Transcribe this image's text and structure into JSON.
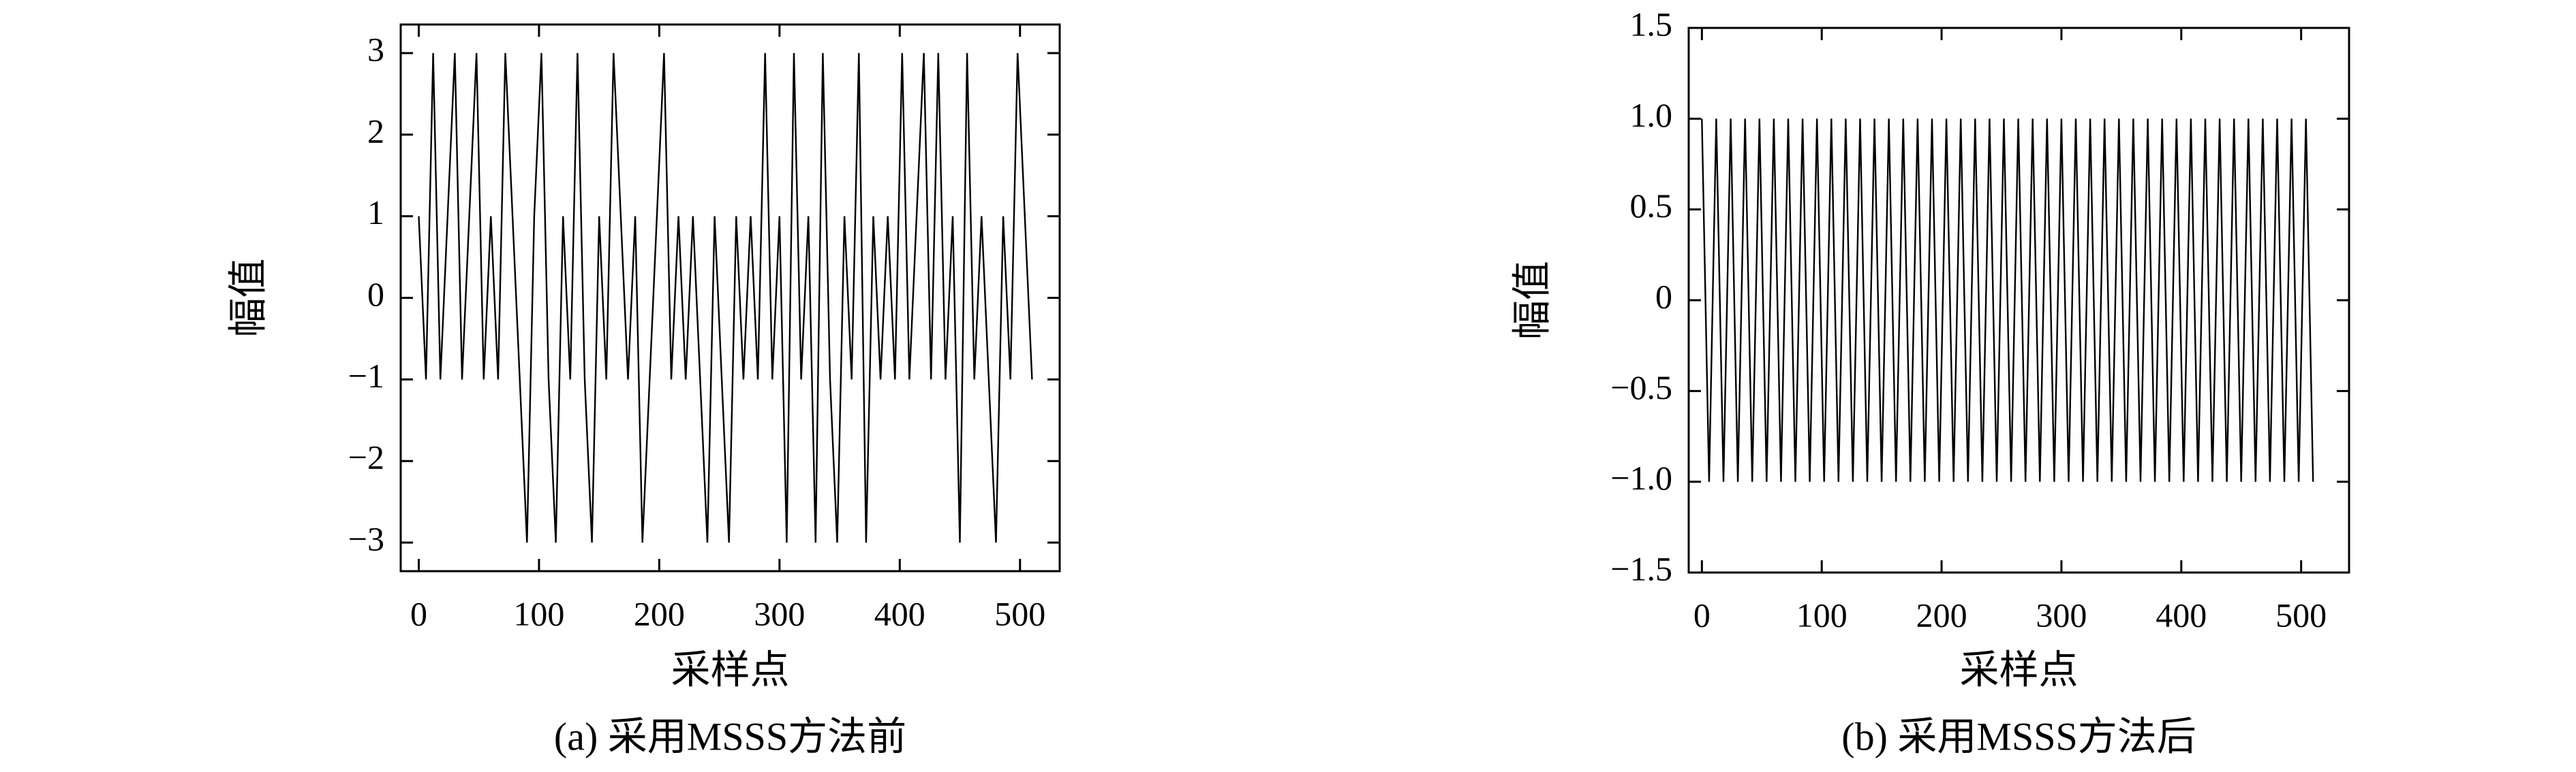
{
  "chart_data": [
    {
      "type": "line",
      "xlabel": "采样点",
      "ylabel": "幅值",
      "caption": "(a) 采用MSSS方法前",
      "color": "#000000",
      "xlim": [
        -15,
        533
      ],
      "ylim": [
        -3.35,
        3.35
      ],
      "xticks": [
        0,
        100,
        200,
        300,
        400,
        500
      ],
      "yticks": [
        {
          "value": -3,
          "label": "−3"
        },
        {
          "value": -2,
          "label": "−2"
        },
        {
          "value": -1,
          "label": "−1"
        },
        0,
        1,
        2,
        3
      ],
      "x": [
        0,
        6,
        12,
        18,
        24,
        30,
        36,
        42,
        48,
        54,
        60,
        66,
        72,
        78,
        84,
        90,
        96,
        102,
        108,
        114,
        120,
        126,
        132,
        138,
        144,
        150,
        156,
        162,
        168,
        174,
        180,
        186,
        192,
        198,
        204,
        210,
        216,
        222,
        228,
        234,
        240,
        246,
        252,
        258,
        264,
        270,
        276,
        282,
        288,
        294,
        300,
        306,
        312,
        318,
        324,
        330,
        336,
        342,
        348,
        354,
        360,
        366,
        372,
        378,
        384,
        390,
        396,
        402,
        408,
        414,
        420,
        426,
        432,
        438,
        444,
        450,
        456,
        462,
        468,
        474,
        480,
        486,
        492,
        498,
        504,
        510
      ],
      "values": [
        1,
        -1,
        3,
        -1,
        1,
        3,
        -1,
        1,
        3,
        -1,
        1,
        -1,
        3,
        1,
        -1,
        -3,
        1,
        3,
        -1,
        -3,
        1,
        -1,
        3,
        -1,
        -3,
        1,
        -1,
        3,
        1,
        -1,
        1,
        -3,
        -1,
        1,
        3,
        -1,
        1,
        -1,
        1,
        -1,
        -3,
        1,
        -1,
        -3,
        1,
        -1,
        1,
        -1,
        3,
        -1,
        1,
        -3,
        3,
        -1,
        1,
        -3,
        3,
        -1,
        -3,
        1,
        -1,
        3,
        -3,
        1,
        -1,
        1,
        -1,
        3,
        -1,
        1,
        3,
        -1,
        3,
        -1,
        1,
        -3,
        3,
        -1,
        1,
        -1,
        -3,
        1,
        -1,
        3,
        1,
        -1
      ]
    },
    {
      "type": "line",
      "xlabel": "采样点",
      "ylabel": "幅值",
      "caption": "(b) 采用MSSS方法后",
      "color": "#000000",
      "xlim": [
        -11,
        540
      ],
      "ylim": [
        -1.5,
        1.5
      ],
      "xticks": [
        0,
        100,
        200,
        300,
        400,
        500
      ],
      "yticks": [
        {
          "value": -1.5,
          "label": "−1.5"
        },
        {
          "value": -1,
          "label": "−1.0"
        },
        {
          "value": -0.5,
          "label": "−0.5"
        },
        0,
        0.5,
        {
          "value": 1,
          "label": "1.0"
        },
        1.5
      ],
      "x": [
        0,
        6,
        12,
        18,
        24,
        30,
        36,
        42,
        48,
        54,
        60,
        66,
        72,
        78,
        84,
        90,
        96,
        102,
        108,
        114,
        120,
        126,
        132,
        138,
        144,
        150,
        156,
        162,
        168,
        174,
        180,
        186,
        192,
        198,
        204,
        210,
        216,
        222,
        228,
        234,
        240,
        246,
        252,
        258,
        264,
        270,
        276,
        282,
        288,
        294,
        300,
        306,
        312,
        318,
        324,
        330,
        336,
        342,
        348,
        354,
        360,
        366,
        372,
        378,
        384,
        390,
        396,
        402,
        408,
        414,
        420,
        426,
        432,
        438,
        444,
        450,
        456,
        462,
        468,
        474,
        480,
        486,
        492,
        498,
        504,
        510
      ],
      "values": [
        1,
        -1,
        1,
        -1,
        1,
        -1,
        1,
        -1,
        1,
        -1,
        1,
        -1,
        1,
        -1,
        1,
        -1,
        1,
        -1,
        1,
        -1,
        1,
        -1,
        1,
        -1,
        1,
        -1,
        1,
        -1,
        1,
        -1,
        1,
        -1,
        1,
        -1,
        1,
        -1,
        1,
        -1,
        1,
        -1,
        1,
        -1,
        1,
        -1,
        1,
        -1,
        1,
        -1,
        1,
        -1,
        1,
        -1,
        1,
        -1,
        1,
        -1,
        1,
        -1,
        1,
        -1,
        1,
        -1,
        1,
        -1,
        1,
        -1,
        1,
        -1,
        1,
        -1,
        1,
        -1,
        1,
        -1,
        1,
        -1,
        1,
        -1,
        1,
        -1,
        1,
        -1,
        1,
        -1,
        1,
        -1
      ]
    }
  ]
}
